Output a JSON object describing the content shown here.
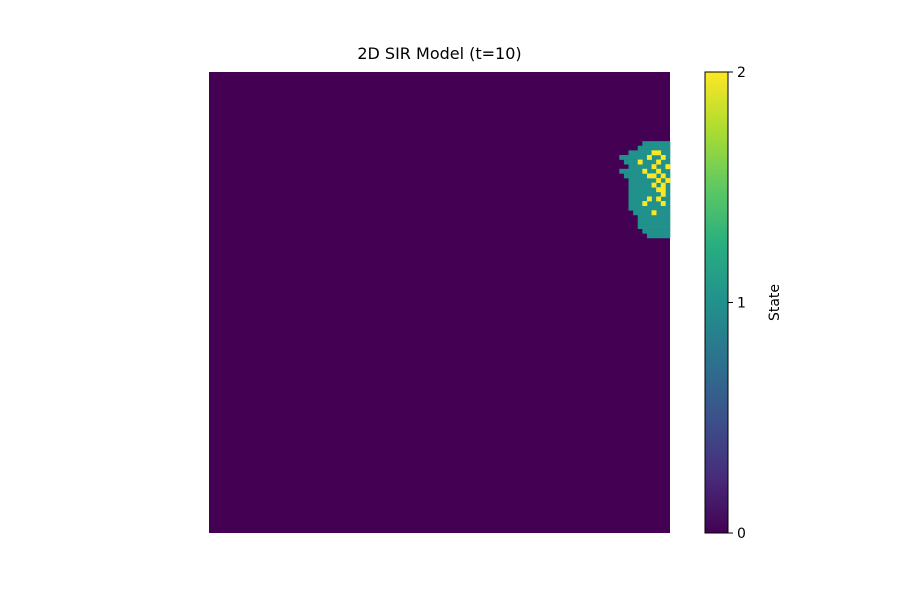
{
  "chart_data": {
    "type": "heatmap",
    "title": "2D SIR Model (t=10)",
    "grid": {
      "rows": 100,
      "cols": 100
    },
    "axes_visible": false,
    "colormap": "viridis",
    "value_range": [
      0,
      2
    ],
    "default_value": 0,
    "colorbar": {
      "label": "State",
      "ticks": [
        0,
        1,
        2
      ],
      "tick_labels": [
        "0",
        "1",
        "2"
      ],
      "placement": "right"
    },
    "colors": {
      "state_0": "#440154",
      "state_1": "#21918c",
      "state_2": "#fde725"
    },
    "cluster_rows_state1": [
      {
        "row": 15,
        "cols": [
          94,
          99
        ]
      },
      {
        "row": 16,
        "cols": [
          93,
          99
        ]
      },
      {
        "row": 17,
        "cols": [
          91,
          99
        ]
      },
      {
        "row": 18,
        "cols": [
          89,
          99
        ]
      },
      {
        "row": 19,
        "cols": [
          90,
          99
        ]
      },
      {
        "row": 20,
        "cols": [
          91,
          99
        ]
      },
      {
        "row": 21,
        "cols": [
          89,
          99
        ]
      },
      {
        "row": 22,
        "cols": [
          90,
          99
        ]
      },
      {
        "row": 23,
        "cols": [
          91,
          99
        ]
      },
      {
        "row": 24,
        "cols": [
          91,
          99
        ]
      },
      {
        "row": 25,
        "cols": [
          91,
          99
        ]
      },
      {
        "row": 26,
        "cols": [
          91,
          99
        ]
      },
      {
        "row": 27,
        "cols": [
          91,
          99
        ]
      },
      {
        "row": 28,
        "cols": [
          91,
          99
        ]
      },
      {
        "row": 29,
        "cols": [
          91,
          99
        ]
      },
      {
        "row": 30,
        "cols": [
          92,
          99
        ]
      },
      {
        "row": 31,
        "cols": [
          93,
          99
        ]
      },
      {
        "row": 32,
        "cols": [
          93,
          99
        ]
      },
      {
        "row": 33,
        "cols": [
          93,
          99
        ]
      },
      {
        "row": 34,
        "cols": [
          94,
          99
        ]
      },
      {
        "row": 35,
        "cols": [
          95,
          99
        ]
      }
    ],
    "cluster_cells_state2": [
      [
        17,
        97
      ],
      [
        17,
        96
      ],
      [
        18,
        95
      ],
      [
        18,
        98
      ],
      [
        19,
        93
      ],
      [
        19,
        97
      ],
      [
        20,
        96
      ],
      [
        20,
        99
      ],
      [
        21,
        94
      ],
      [
        21,
        97
      ],
      [
        22,
        95
      ],
      [
        22,
        96
      ],
      [
        22,
        98
      ],
      [
        23,
        97
      ],
      [
        23,
        99
      ],
      [
        24,
        96
      ],
      [
        24,
        98
      ],
      [
        25,
        97
      ],
      [
        25,
        98
      ],
      [
        26,
        98
      ],
      [
        27,
        95
      ],
      [
        27,
        97
      ],
      [
        28,
        94
      ],
      [
        28,
        98
      ],
      [
        30,
        96
      ]
    ]
  }
}
